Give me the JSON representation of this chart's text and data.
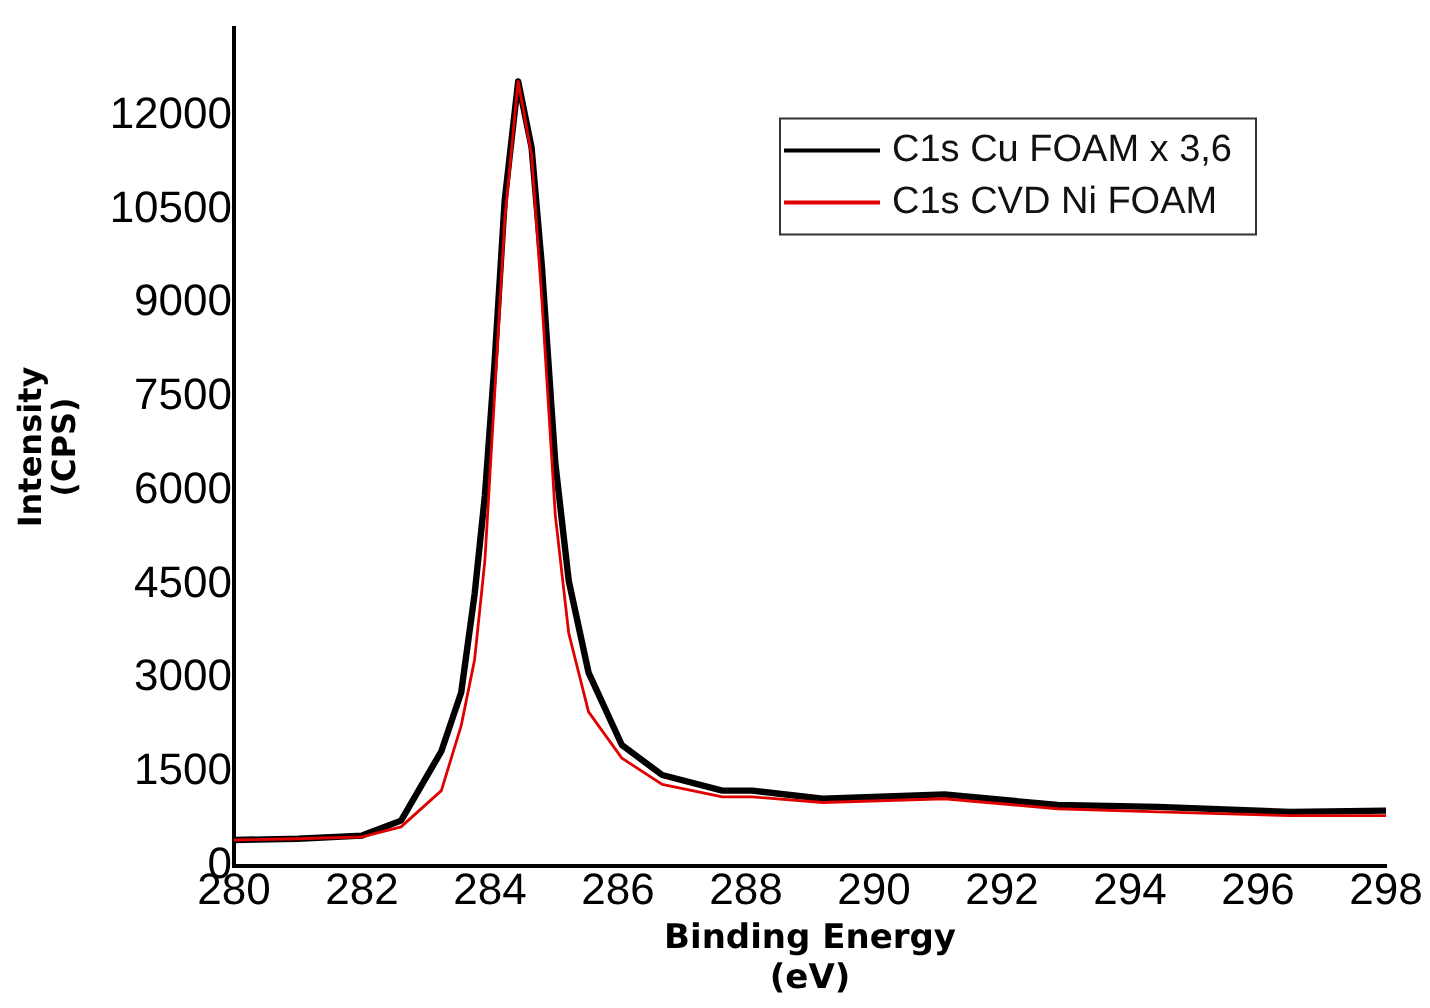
{
  "chart_data": {
    "type": "line",
    "xlabel": "Binding Energy\n(eV)",
    "ylabel": "Intensity\n(CPS)",
    "x": [
      280,
      281,
      282,
      282.61,
      283.24,
      283.55,
      283.76,
      283.92,
      284.07,
      284.23,
      284.44,
      284.65,
      284.81,
      285.02,
      285.23,
      285.54,
      286.06,
      286.69,
      287.63,
      288.1,
      289.2,
      291.1,
      292.87,
      294.44,
      296.5,
      298
    ],
    "series": [
      {
        "name": "C1s Cu FOAM x 3,6",
        "color": "#000000",
        "values": [
          410,
          430,
          480,
          720,
          1830,
          2770,
          4350,
          5920,
          8030,
          10650,
          12550,
          11490,
          9600,
          6450,
          4560,
          3090,
          1930,
          1450,
          1200,
          1200,
          1070,
          1140,
          970,
          940,
          860,
          880
        ]
      },
      {
        "name": "C1s CVD Ni FOAM",
        "color": "#e00000",
        "values": [
          410,
          430,
          460,
          620,
          1200,
          2240,
          3300,
          4880,
          7500,
          10330,
          12550,
          11370,
          9070,
          5610,
          3720,
          2460,
          1720,
          1300,
          1100,
          1100,
          1010,
          1070,
          910,
          860,
          800,
          800
        ]
      }
    ],
    "xlim": [
      280,
      298
    ],
    "xticks": [
      280,
      282,
      284,
      286,
      288,
      290,
      292,
      294,
      296,
      298
    ],
    "ylim": [
      0,
      13400
    ],
    "yticks": [
      0,
      1500,
      3000,
      4500,
      6000,
      7500,
      9000,
      10500,
      12000
    ],
    "grid": false,
    "legend": "top right",
    "marker": "none",
    "line_style": "solid"
  }
}
